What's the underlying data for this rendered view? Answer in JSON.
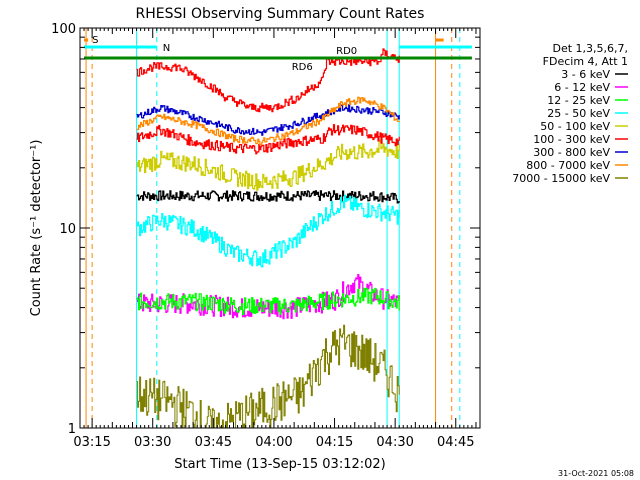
{
  "chart_data": {
    "type": "line",
    "title": "RHESSI Observing Summary Count Rates",
    "xlabel": "Start Time (13-Sep-15 03:12:02)",
    "ylabel": "Count Rate (s⁻¹ detector⁻¹)",
    "y_scale": "log",
    "ylim": [
      1,
      100
    ],
    "xlim": [
      "03:12",
      "04:51"
    ],
    "x_ticks": [
      "03:15",
      "03:30",
      "03:45",
      "04:00",
      "04:15",
      "04:30",
      "04:45"
    ],
    "y_ticks": [
      "1",
      "10",
      "100"
    ],
    "legend_header": [
      "Det 1,3,5,6,7,",
      "FDecim 4, Att 1"
    ],
    "legend_position": "right",
    "series": [
      {
        "name": "3 - 6 keV",
        "color": "#000000",
        "times": [
          "03:26",
          "03:40",
          "03:52",
          "04:05",
          "04:15",
          "04:25",
          "04:31"
        ],
        "values": [
          14.5,
          14.5,
          14.5,
          14.5,
          14.5,
          14.5,
          14
        ]
      },
      {
        "name": "6 - 12 keV",
        "color": "#ff00ff",
        "times": [
          "03:26",
          "03:40",
          "03:52",
          "04:05",
          "04:15",
          "04:20",
          "04:25",
          "04:31"
        ],
        "values": [
          4.2,
          4.2,
          4.0,
          4.0,
          4.4,
          5.4,
          4.6,
          4.2
        ]
      },
      {
        "name": "12 - 25 keV",
        "color": "#00ff00",
        "times": [
          "03:26",
          "03:40",
          "03:52",
          "04:05",
          "04:15",
          "04:25",
          "04:31"
        ],
        "values": [
          4.3,
          4.3,
          4.1,
          4.1,
          4.4,
          4.6,
          4.2
        ]
      },
      {
        "name": "25 - 50 keV",
        "color": "#00ffff",
        "times": [
          "03:26",
          "03:32",
          "03:40",
          "03:50",
          "03:57",
          "04:05",
          "04:12",
          "04:17",
          "04:22",
          "04:27",
          "04:31"
        ],
        "values": [
          10,
          11,
          10,
          7.5,
          7.0,
          8.5,
          11.5,
          13.5,
          12.5,
          12,
          11.5
        ]
      },
      {
        "name": "50 - 100 keV",
        "color": "#cccc00",
        "times": [
          "03:26",
          "03:32",
          "03:40",
          "03:50",
          "03:57",
          "04:05",
          "04:12",
          "04:17",
          "04:22",
          "04:27",
          "04:31"
        ],
        "values": [
          20,
          22,
          21,
          18,
          17,
          18,
          21,
          24,
          24,
          25,
          24
        ]
      },
      {
        "name": "100 - 300 keV",
        "color": "#ff0000",
        "times": [
          "03:26",
          "03:32",
          "03:40",
          "03:50",
          "03:57",
          "04:05",
          "04:12",
          "04:14",
          "04:20",
          "04:25",
          "04:27",
          "04:31"
        ],
        "values": [
          28,
          31,
          27,
          25,
          25,
          27,
          28,
          31,
          31,
          29,
          28,
          27
        ]
      },
      {
        "name": "300 - 800 keV",
        "color": "#0000cc",
        "times": [
          "03:26",
          "03:32",
          "03:40",
          "03:50",
          "03:57",
          "04:05",
          "04:12",
          "04:17",
          "04:22",
          "04:27",
          "04:31"
        ],
        "values": [
          36,
          40,
          36,
          31,
          30,
          33,
          37,
          40,
          39,
          38,
          36
        ]
      },
      {
        "name": "800 - 7000 keV",
        "color": "#ff8800",
        "times": [
          "03:26",
          "03:32",
          "03:40",
          "03:50",
          "03:57",
          "04:05",
          "04:12",
          "04:17",
          "04:22",
          "04:27",
          "04:31"
        ],
        "values": [
          32,
          36,
          33,
          28,
          27,
          30,
          35,
          42,
          44,
          40,
          34
        ]
      },
      {
        "name": "7000 - 15000 keV",
        "color": "#808000",
        "times": [
          "03:26",
          "03:32",
          "03:37",
          "03:45",
          "04:07",
          "04:13",
          "04:17",
          "04:22",
          "04:27",
          "04:31"
        ],
        "values": [
          1.5,
          1.4,
          1.3,
          1.0,
          1.5,
          2.4,
          2.7,
          2.4,
          2.0,
          1.5
        ]
      },
      {
        "name": "",
        "color": "#ff0000",
        "times": [
          "03:26",
          "03:30",
          "03:36",
          "03:42",
          "03:48",
          "03:54",
          "04:00",
          "04:06",
          "04:12",
          "04:13",
          "04:20",
          "04:26",
          "04:27",
          "04:31"
        ],
        "values": [
          60,
          64,
          64,
          55,
          45,
          40,
          40,
          45,
          55,
          68,
          68,
          68,
          75,
          70
        ]
      }
    ],
    "state_bars": {
      "rd_bar": {
        "color": "#008800",
        "start": "03:13",
        "end": "04:49",
        "labels": [
          "RD6",
          "RD0"
        ]
      },
      "cyan_bars": [
        {
          "start": "03:13",
          "end": "03:31",
          "label": "N"
        },
        {
          "start": "04:31",
          "end": "04:49",
          "label": ""
        }
      ],
      "orange_markers": [
        {
          "start": "03:13",
          "end": "03:14",
          "label": "S"
        },
        {
          "start": "04:40",
          "end": "04:42",
          "label": ""
        }
      ]
    },
    "vertical_lines": [
      {
        "time": "03:13.5",
        "color": "#ff8800",
        "style": "solid"
      },
      {
        "time": "03:15",
        "color": "#ff8800",
        "style": "dashed"
      },
      {
        "time": "03:26",
        "color": "#00ffff",
        "style": "solid"
      },
      {
        "time": "03:31",
        "color": "#00ffff",
        "style": "dashed"
      },
      {
        "time": "04:28",
        "color": "#00ffff",
        "style": "solid"
      },
      {
        "time": "04:31",
        "color": "#00ffff",
        "style": "solid"
      },
      {
        "time": "04:40",
        "color": "#ff8800",
        "style": "solid"
      },
      {
        "time": "04:44",
        "color": "#ff8800",
        "style": "dashed"
      },
      {
        "time": "04:46",
        "color": "#00ffff",
        "style": "dashed"
      }
    ]
  },
  "footer": {
    "date_stamp": "31-Oct-2021 05:08"
  }
}
